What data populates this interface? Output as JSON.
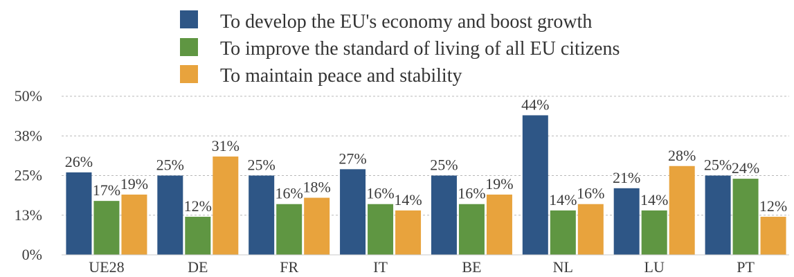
{
  "chart_data": {
    "type": "bar",
    "title": "",
    "xlabel": "",
    "ylabel": "",
    "ylim": [
      0,
      50
    ],
    "yticks": [
      "0%",
      "13%",
      "25%",
      "38%",
      "50%"
    ],
    "ytick_values": [
      0,
      12.5,
      25,
      37.5,
      50
    ],
    "grid": true,
    "legend_position": "top-center",
    "categories": [
      "UE28",
      "DE",
      "FR",
      "IT",
      "BE",
      "NL",
      "LU",
      "PT"
    ],
    "series": [
      {
        "name": "To develop the EU's economy and boost growth",
        "color": "#2e5686",
        "values": [
          26,
          25,
          25,
          27,
          25,
          44,
          21,
          25
        ],
        "labels": [
          "26%",
          "25%",
          "25%",
          "27%",
          "25%",
          "44%",
          "21%",
          "25%"
        ]
      },
      {
        "name": "To improve the standard of living of all EU citizens",
        "color": "#5f9642",
        "values": [
          17,
          12,
          16,
          16,
          16,
          14,
          14,
          24
        ],
        "labels": [
          "17%",
          "12%",
          "16%",
          "16%",
          "16%",
          "14%",
          "14%",
          "24%"
        ]
      },
      {
        "name": "To maintain peace and stability",
        "color": "#e8a33d",
        "values": [
          19,
          31,
          18,
          14,
          19,
          16,
          28,
          12
        ],
        "labels": [
          "19%",
          "31%",
          "18%",
          "14%",
          "19%",
          "16%",
          "28%",
          "12%"
        ]
      }
    ]
  }
}
